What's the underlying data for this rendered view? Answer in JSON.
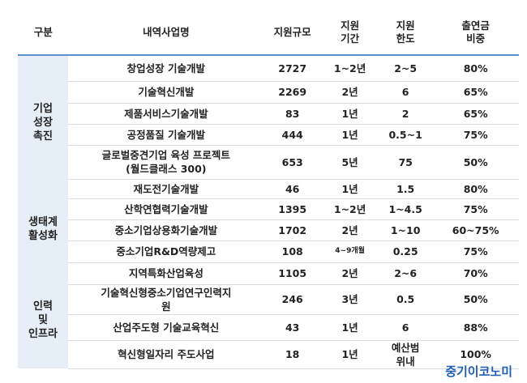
{
  "table": {
    "header": [
      "구분",
      "내역사업명",
      "지원규모",
      "지원\n기간",
      "지원\n한도",
      "출연금\n비중"
    ],
    "groups": [
      "기업\n성장\n촉진",
      "생태계\n활성화",
      "인력\n및\n인프라"
    ],
    "rows": [
      [
        "창업성장 기술개발",
        2727,
        "1~2년",
        "2~5",
        "80%"
      ],
      [
        "기술혁신개발",
        2269,
        "2년",
        6,
        "65%"
      ],
      [
        "제품서비스기술개발",
        83,
        "1년",
        2,
        "65%"
      ],
      [
        "공정품질 기술개발",
        444,
        "1년",
        "0.5~1",
        "75%"
      ],
      [
        "글로벌중견기업 육성 프로젝트\n(월드클래스 300)",
        653,
        "5년",
        75,
        "50%"
      ],
      [
        "재도전기술개발",
        46,
        "1년",
        1.5,
        "80%"
      ],
      [
        "산학연협력기술개발",
        1395,
        "1~2년",
        "1~4.5",
        "75%"
      ],
      [
        "중소기업상용화기술개발",
        1702,
        "2년",
        "1~10",
        "60~75%"
      ],
      [
        "중소기업R&D역량제고",
        108,
        "4~9개월",
        0.25,
        "75%"
      ],
      [
        "지역특화산업육성",
        1105,
        "2년",
        "2~6",
        "70%"
      ],
      [
        "기술혁신형중소기업연구인력지\n원",
        246,
        "3년",
        0.5,
        "50%"
      ],
      [
        "산업주도형 기술교육혁신",
        43,
        "1년",
        6,
        "88%"
      ],
      [
        "혁신형일자리 주도사업",
        18,
        "1년",
        "예산범\n위내",
        "100%"
      ]
    ]
  },
  "watermark": "중기이코노미"
}
